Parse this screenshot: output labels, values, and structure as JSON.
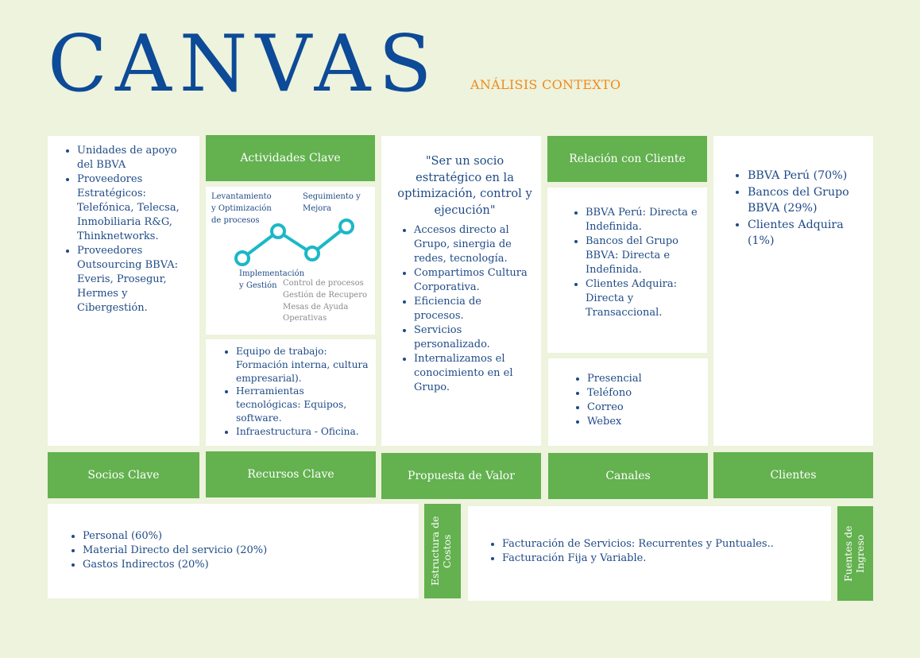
{
  "header": {
    "title": "CANVAS",
    "subtitle": "ANÁLISIS CONTEXTO"
  },
  "socios": {
    "items": [
      "Unidades de apoyo del BBVA",
      "Proveedores Estratégicos: Telefónica, Telecsa, Inmobiliaria R&G, Thinknetworks.",
      "Proveedores Outsourcing BBVA: Everis, Prosegur, Hermes y Cibergestión."
    ],
    "label": "Socios Clave"
  },
  "actividades": {
    "label": "Actividades Clave",
    "step1": [
      "Levantamiento",
      "y Optimización",
      "de procesos"
    ],
    "step2": [
      "Seguimiento y",
      "Mejora"
    ],
    "step3": [
      "Implementación",
      "y Gestión"
    ],
    "step4": [
      "Control de procesos",
      "Gestión de Recupero",
      "Mesas de Ayuda",
      "Operativas"
    ],
    "line_color": "#1bb8c6"
  },
  "recursos": {
    "items": [
      "Equipo de trabajo: Formación interna, cultura empresarial).",
      "Herramientas tecnológicas: Equipos, software.",
      "Infraestructura - Oficina."
    ],
    "label": "Recursos Clave"
  },
  "propuesta": {
    "quote": "\"Ser un socio estratégico en la optimización, control y ejecución\"",
    "items": [
      "Accesos directo al Grupo, sinergia de redes, tecnología.",
      "Compartimos Cultura Corporativa.",
      "Eficiencia de procesos.",
      "Servicios personalizado.",
      "Internalizamos el conocimiento en el Grupo."
    ],
    "label": "Propuesta de Valor"
  },
  "relacion": {
    "label": "Relación con Cliente",
    "items": [
      "BBVA Perú: Directa e Indefinida.",
      "Bancos del Grupo BBVA: Directa e Indefinida.",
      "Clientes Adquira: Directa y Transaccional."
    ]
  },
  "canales": {
    "items": [
      "Presencial",
      "Teléfono",
      "Correo",
      "Webex"
    ],
    "label": "Canales"
  },
  "clientes": {
    "items": [
      "BBVA Perú (70%)",
      "Bancos del Grupo BBVA (29%)",
      "Clientes Adquira (1%)"
    ],
    "label": "Clientes"
  },
  "costos": {
    "items": [
      "Personal (60%)",
      "Material Directo del servicio (20%)",
      "Gastos Indirectos (20%)"
    ],
    "label": "Estructura de Costos"
  },
  "ingresos": {
    "items": [
      "Facturación de Servicios: Recurrentes y Puntuales..",
      "Facturación Fija y Variable."
    ],
    "label": "Fuentes de Ingreso"
  },
  "colors": {
    "background": "#edf3dc",
    "title": "#0d4a97",
    "subtitle": "#ef8a1c",
    "green": "#63b14f",
    "text": "#1f4a86"
  }
}
